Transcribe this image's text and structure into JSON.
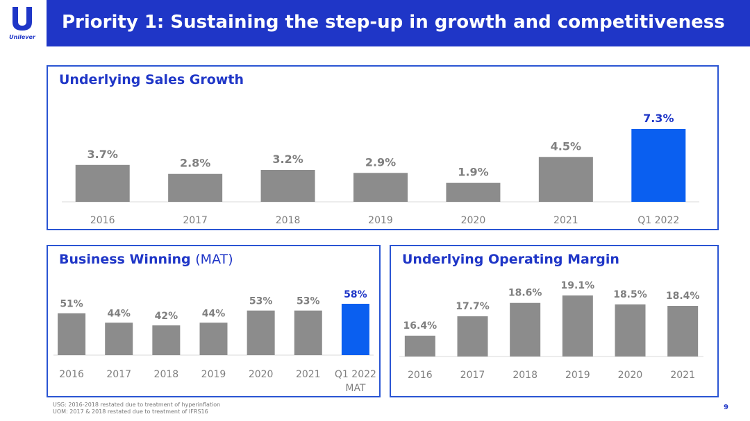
{
  "header": {
    "title": "Priority 1: Sustaining the step-up in growth and competitiveness",
    "logo_text": "Unilever"
  },
  "colors": {
    "brand_blue": "#1f36c7",
    "highlight_bar": "#0a5ff0",
    "bar_gray": "#8c8c8c",
    "panel_border": "#2a55d3"
  },
  "panels": {
    "usg": {
      "title": "Underlying Sales Growth"
    },
    "bw": {
      "title": "Business Winning",
      "title_suffix": "(MAT)"
    },
    "uom": {
      "title": "Underlying Operating Margin"
    }
  },
  "chart_data": [
    {
      "id": "usg",
      "type": "bar",
      "title": "Underlying Sales Growth",
      "categories": [
        "2016",
        "2017",
        "2018",
        "2019",
        "2020",
        "2021",
        "Q1 2022"
      ],
      "values": [
        3.7,
        2.8,
        3.2,
        2.9,
        1.9,
        4.5,
        7.3
      ],
      "data_labels": [
        "3.7%",
        "2.8%",
        "3.2%",
        "2.9%",
        "1.9%",
        "4.5%",
        "7.3%"
      ],
      "highlight_index": 6,
      "ylim": [
        0,
        7.3
      ]
    },
    {
      "id": "bw",
      "type": "bar",
      "title": "Business Winning (MAT)",
      "categories": [
        "2016",
        "2017",
        "2018",
        "2019",
        "2020",
        "2021",
        "Q1 2022"
      ],
      "category_sublabels": [
        "",
        "",
        "",
        "",
        "",
        "",
        "MAT"
      ],
      "values": [
        51,
        44,
        42,
        44,
        53,
        53,
        58
      ],
      "data_labels": [
        "51%",
        "44%",
        "42%",
        "44%",
        "53%",
        "53%",
        "58%"
      ],
      "highlight_index": 6,
      "ylim": [
        20,
        58
      ]
    },
    {
      "id": "uom",
      "type": "bar",
      "title": "Underlying Operating Margin",
      "categories": [
        "2016",
        "2017",
        "2018",
        "2019",
        "2020",
        "2021"
      ],
      "values": [
        16.4,
        17.7,
        18.6,
        19.1,
        18.5,
        18.4
      ],
      "data_labels": [
        "16.4%",
        "17.7%",
        "18.6%",
        "19.1%",
        "18.5%",
        "18.4%"
      ],
      "highlight_index": -1,
      "ylim": [
        15.0,
        19.1
      ]
    }
  ],
  "footnotes": [
    "USG: 2016-2018 restated due to treatment of hyperinflation",
    "UOM: 2017 & 2018 restated due to treatment of IFRS16"
  ],
  "page_number": "9"
}
